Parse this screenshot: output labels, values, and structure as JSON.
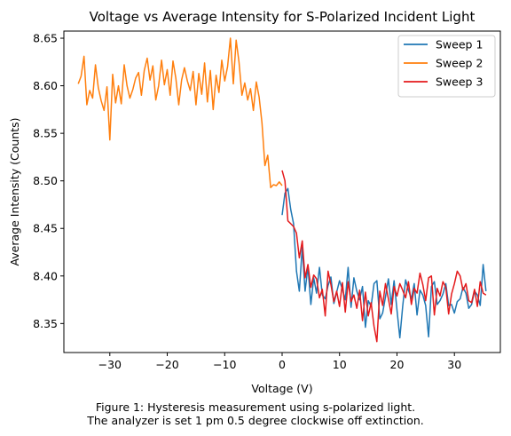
{
  "chart_data": {
    "type": "line",
    "title": "Voltage vs Average Intensity for S-Polarized Incident Light",
    "xlabel": "Voltage (V)",
    "ylabel": "Average Intensity (Counts)",
    "xlim": [
      -38,
      38
    ],
    "ylim": [
      8.3195,
      8.6575
    ],
    "xticks": [
      -30,
      -20,
      -10,
      0,
      10,
      20,
      30
    ],
    "yticks": [
      8.35,
      8.4,
      8.45,
      8.5,
      8.55,
      8.6,
      8.65
    ],
    "xtick_labels": [
      "−30",
      "−20",
      "−10",
      "0",
      "10",
      "20",
      "30"
    ],
    "ytick_labels": [
      "8.35",
      "8.40",
      "8.45",
      "8.50",
      "8.55",
      "8.60",
      "8.65"
    ],
    "grid": false,
    "legend_position": "top-right",
    "series": [
      {
        "name": "Sweep 1",
        "color": "#1f77b4",
        "x": [
          0,
          0.5,
          1,
          1.5,
          2,
          2.5,
          3,
          3.5,
          4,
          4.5,
          5,
          5.5,
          6,
          6.5,
          7,
          7.5,
          8,
          8.5,
          9,
          9.5,
          10,
          10.5,
          11,
          11.5,
          12,
          12.5,
          13,
          13.5,
          14,
          14.5,
          15,
          15.5,
          16,
          16.5,
          17,
          17.5,
          18,
          18.5,
          19,
          19.5,
          20,
          20.5,
          21,
          21.5,
          22,
          22.5,
          23,
          23.5,
          24,
          24.5,
          25,
          25.5,
          26,
          26.5,
          27,
          27.5,
          28,
          28.5,
          29,
          29.5,
          30,
          30.5,
          31,
          31.5,
          32,
          32.5,
          33,
          33.5,
          34,
          34.5,
          35,
          35.5
        ],
        "y": [
          8.464,
          8.487,
          8.492,
          8.47,
          8.455,
          8.405,
          8.384,
          8.43,
          8.384,
          8.41,
          8.37,
          8.398,
          8.382,
          8.409,
          8.38,
          8.376,
          8.39,
          8.399,
          8.371,
          8.383,
          8.395,
          8.386,
          8.375,
          8.409,
          8.367,
          8.398,
          8.384,
          8.375,
          8.389,
          8.346,
          8.374,
          8.368,
          8.392,
          8.395,
          8.355,
          8.361,
          8.378,
          8.397,
          8.37,
          8.395,
          8.364,
          8.335,
          8.368,
          8.396,
          8.385,
          8.376,
          8.392,
          8.359,
          8.385,
          8.38,
          8.369,
          8.336,
          8.389,
          8.394,
          8.37,
          8.374,
          8.381,
          8.392,
          8.369,
          8.37,
          8.361,
          8.373,
          8.376,
          8.388,
          8.382,
          8.366,
          8.37,
          8.384,
          8.38,
          8.369,
          8.412,
          8.384
        ]
      },
      {
        "name": "Sweep 2",
        "color": "#ff7f0e",
        "x": [
          -35.5,
          -35,
          -34.5,
          -34,
          -33.5,
          -33,
          -32.5,
          -32,
          -31.5,
          -31,
          -30.5,
          -30,
          -29.5,
          -29,
          -28.5,
          -28,
          -27.5,
          -27,
          -26.5,
          -26,
          -25.5,
          -25,
          -24.5,
          -24,
          -23.5,
          -23,
          -22.5,
          -22,
          -21.5,
          -21,
          -20.5,
          -20,
          -19.5,
          -19,
          -18.5,
          -18,
          -17.5,
          -17,
          -16.5,
          -16,
          -15.5,
          -15,
          -14.5,
          -14,
          -13.5,
          -13,
          -12.5,
          -12,
          -11.5,
          -11,
          -10.5,
          -10,
          -9.5,
          -9,
          -8.5,
          -8,
          -7.5,
          -7,
          -6.5,
          -6,
          -5.5,
          -5,
          -4.5,
          -4,
          -3.5,
          -3,
          -2.5,
          -2,
          -1.5,
          -1,
          -0.5,
          0
        ],
        "y": [
          8.602,
          8.61,
          8.631,
          8.58,
          8.595,
          8.587,
          8.622,
          8.598,
          8.584,
          8.574,
          8.599,
          8.543,
          8.612,
          8.582,
          8.6,
          8.581,
          8.622,
          8.6,
          8.587,
          8.596,
          8.608,
          8.614,
          8.59,
          8.616,
          8.629,
          8.606,
          8.621,
          8.585,
          8.6,
          8.627,
          8.601,
          8.617,
          8.59,
          8.626,
          8.608,
          8.58,
          8.606,
          8.619,
          8.605,
          8.595,
          8.615,
          8.58,
          8.613,
          8.591,
          8.624,
          8.583,
          8.616,
          8.575,
          8.611,
          8.593,
          8.627,
          8.605,
          8.62,
          8.65,
          8.602,
          8.648,
          8.625,
          8.59,
          8.603,
          8.585,
          8.597,
          8.574,
          8.604,
          8.588,
          8.561,
          8.516,
          8.527,
          8.493,
          8.496,
          8.495,
          8.499,
          8.495
        ]
      },
      {
        "name": "Sweep 3",
        "color": "#e41a1c",
        "x": [
          0,
          0.5,
          1,
          1.5,
          2,
          2.5,
          3,
          3.5,
          4,
          4.5,
          5,
          5.5,
          6,
          6.5,
          7,
          7.5,
          8,
          8.5,
          9,
          9.5,
          10,
          10.5,
          11,
          11.5,
          12,
          12.5,
          13,
          13.5,
          14,
          14.5,
          15,
          15.5,
          16,
          16.5,
          17,
          17.5,
          18,
          18.5,
          19,
          19.5,
          20,
          20.5,
          21,
          21.5,
          22,
          22.5,
          23,
          23.5,
          24,
          24.5,
          25,
          25.5,
          26,
          26.5,
          27,
          27.5,
          28,
          28.5,
          29,
          29.5,
          30,
          30.5,
          31,
          31.5,
          32,
          32.5,
          33,
          33.5,
          34,
          34.5,
          35,
          35.5
        ],
        "y": [
          8.511,
          8.5,
          8.458,
          8.455,
          8.452,
          8.445,
          8.419,
          8.437,
          8.398,
          8.412,
          8.388,
          8.401,
          8.397,
          8.377,
          8.386,
          8.358,
          8.405,
          8.391,
          8.373,
          8.384,
          8.368,
          8.393,
          8.362,
          8.394,
          8.373,
          8.38,
          8.366,
          8.385,
          8.353,
          8.383,
          8.358,
          8.372,
          8.347,
          8.331,
          8.384,
          8.369,
          8.392,
          8.376,
          8.36,
          8.389,
          8.379,
          8.392,
          8.385,
          8.377,
          8.394,
          8.37,
          8.387,
          8.382,
          8.403,
          8.391,
          8.374,
          8.398,
          8.4,
          8.359,
          8.387,
          8.379,
          8.394,
          8.388,
          8.36,
          8.381,
          8.392,
          8.405,
          8.4,
          8.385,
          8.392,
          8.374,
          8.372,
          8.386,
          8.368,
          8.394,
          8.382,
          8.38
        ]
      }
    ]
  },
  "caption": {
    "line1": "Figure 1: Hysteresis measurement using s-polarized light.",
    "line2": "The analyzer is set 1 pm 0.5 degree clockwise off extinction."
  }
}
